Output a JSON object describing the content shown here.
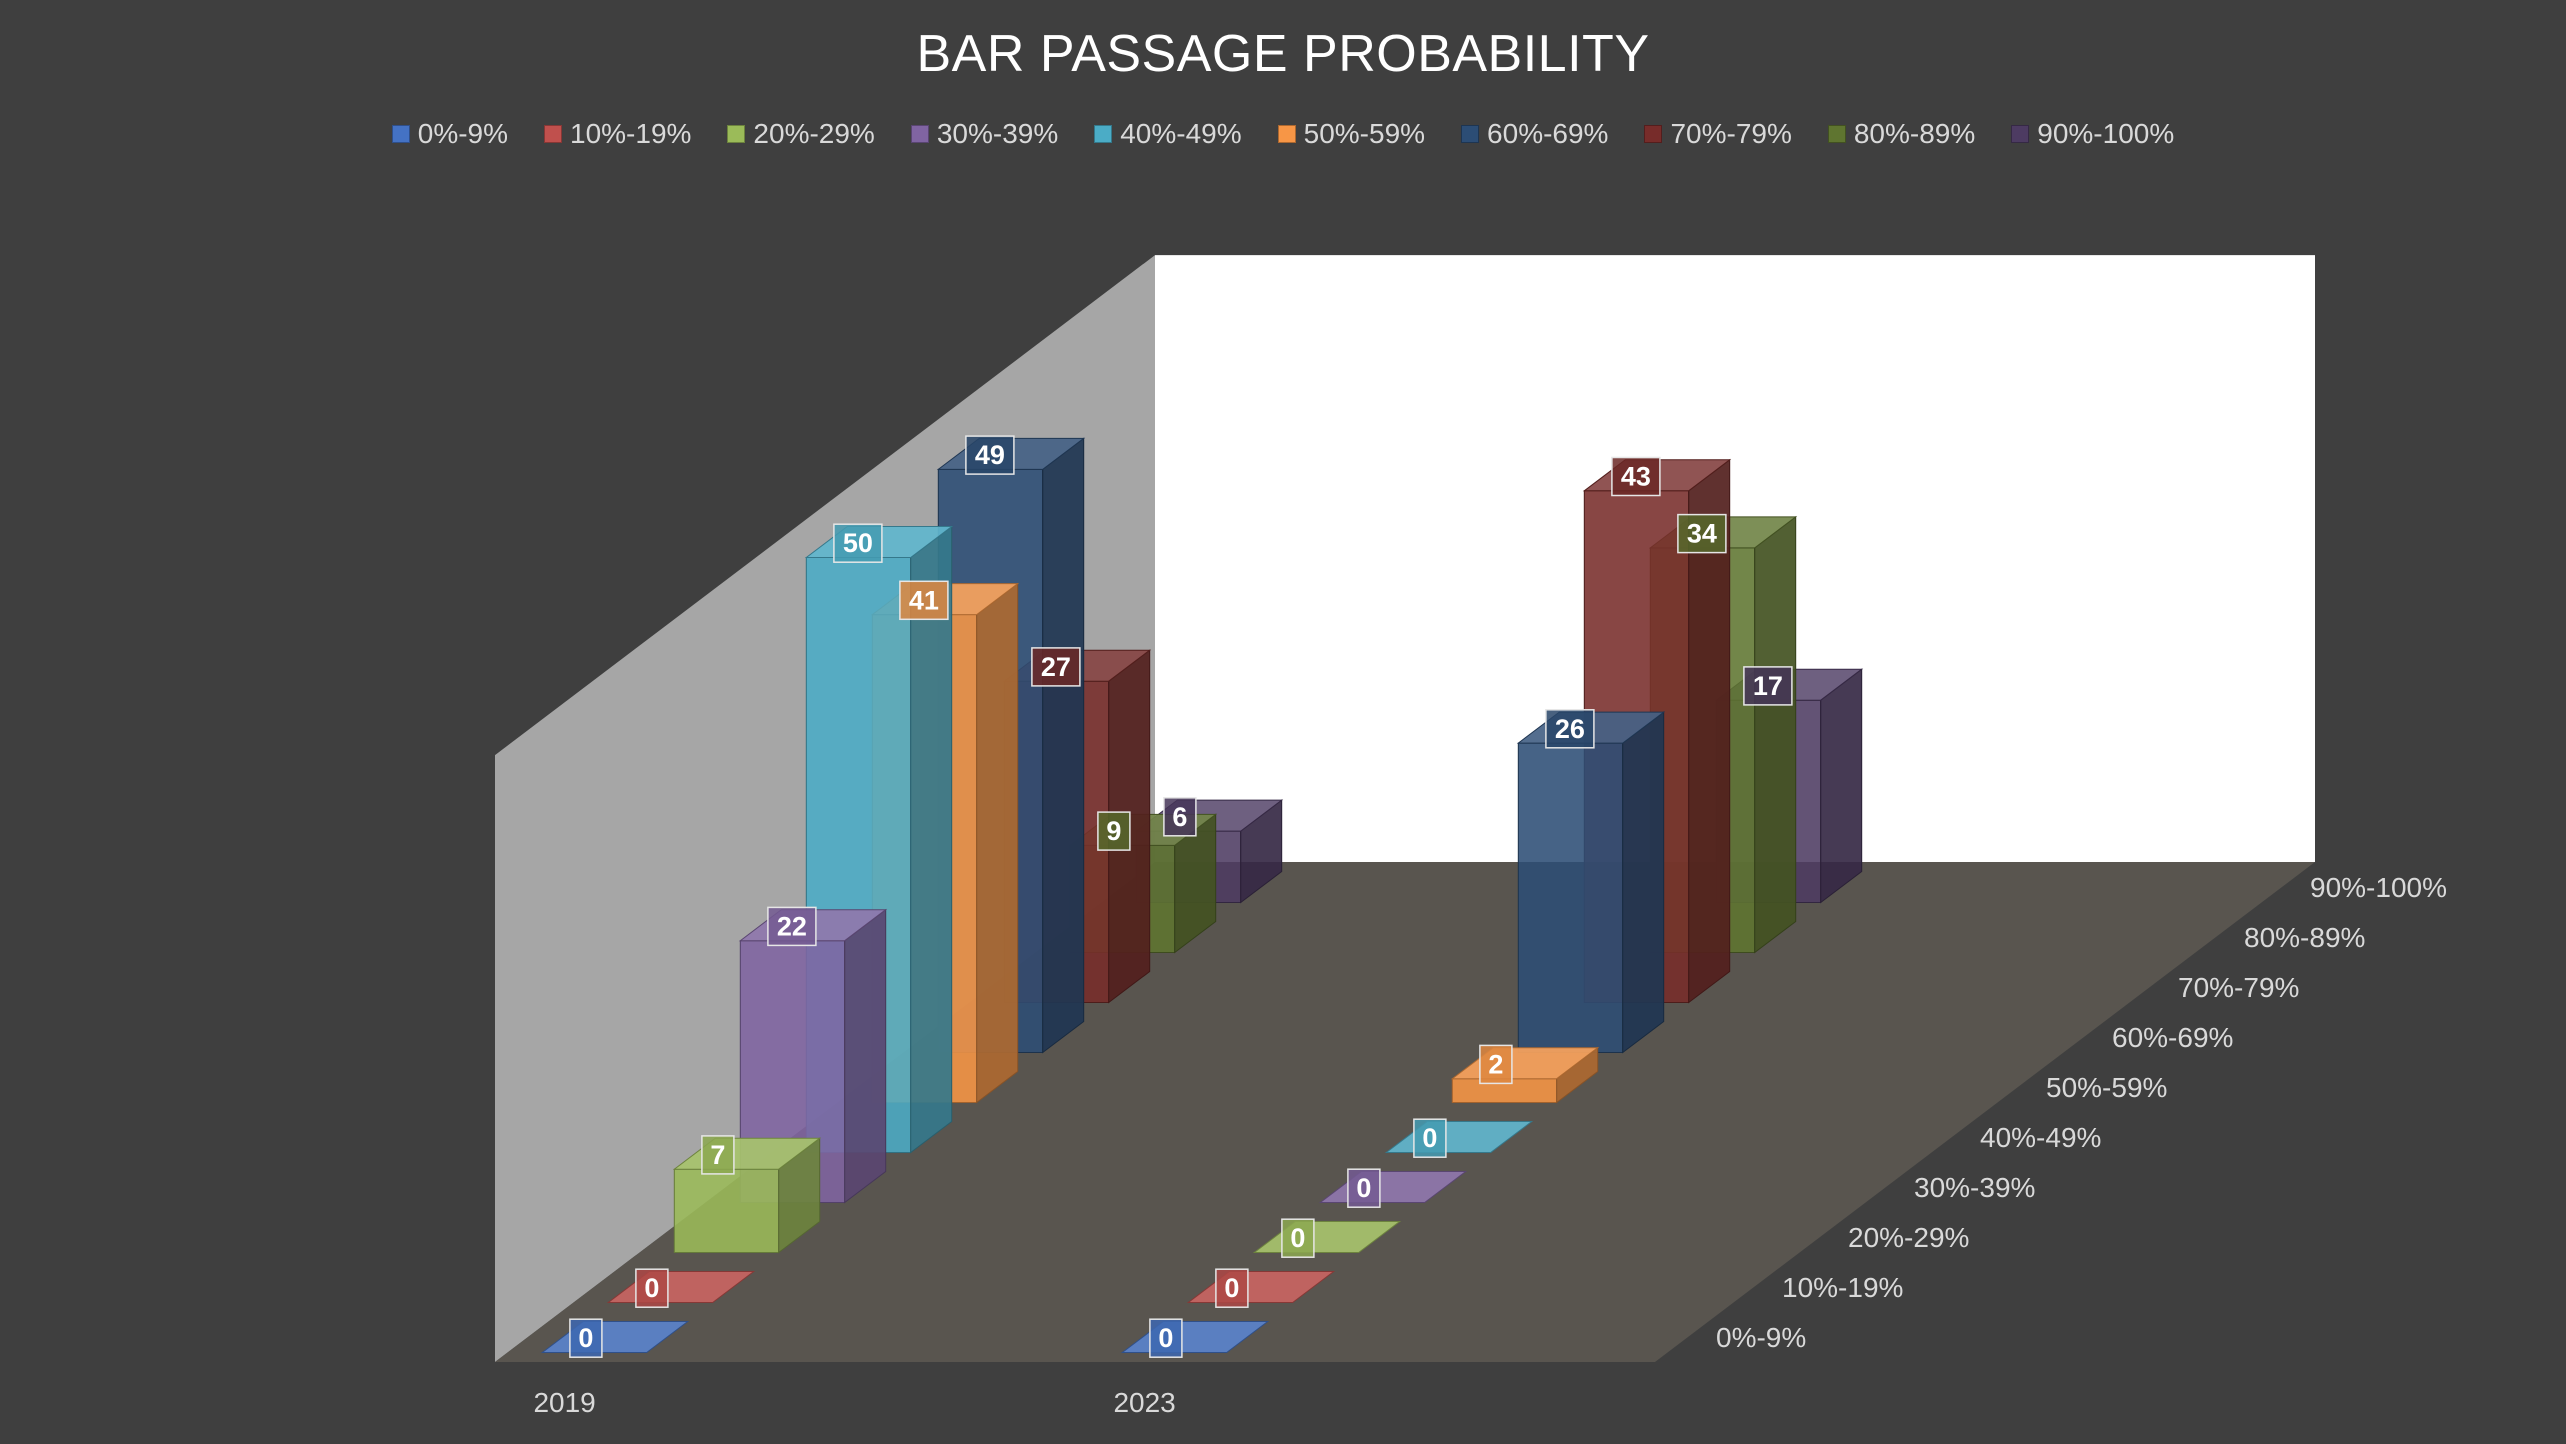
{
  "chart_data": {
    "type": "bar",
    "title": "BAR PASSAGE PROBABILITY",
    "categories": [
      "2019",
      "2023"
    ],
    "legend_position": "top",
    "grid": false,
    "series": [
      {
        "name": "0%-9%",
        "color": "#4472c4",
        "values": [
          0,
          0
        ]
      },
      {
        "name": "10%-19%",
        "color": "#c0504d",
        "values": [
          0,
          0
        ]
      },
      {
        "name": "20%-29%",
        "color": "#9bbb59",
        "values": [
          7,
          0
        ]
      },
      {
        "name": "30%-39%",
        "color": "#8064a2",
        "values": [
          22,
          0
        ]
      },
      {
        "name": "40%-49%",
        "color": "#4bacc6",
        "values": [
          50,
          0
        ]
      },
      {
        "name": "50%-59%",
        "color": "#f79646",
        "values": [
          41,
          2
        ]
      },
      {
        "name": "60%-69%",
        "color": "#2c4d75",
        "values": [
          49,
          26
        ]
      },
      {
        "name": "70%-79%",
        "color": "#772c2a",
        "values": [
          27,
          43
        ]
      },
      {
        "name": "80%-89%",
        "color": "#5f7530",
        "values": [
          9,
          34
        ]
      },
      {
        "name": "90%-100%",
        "color": "#4d3b62",
        "values": [
          6,
          17
        ]
      }
    ]
  }
}
